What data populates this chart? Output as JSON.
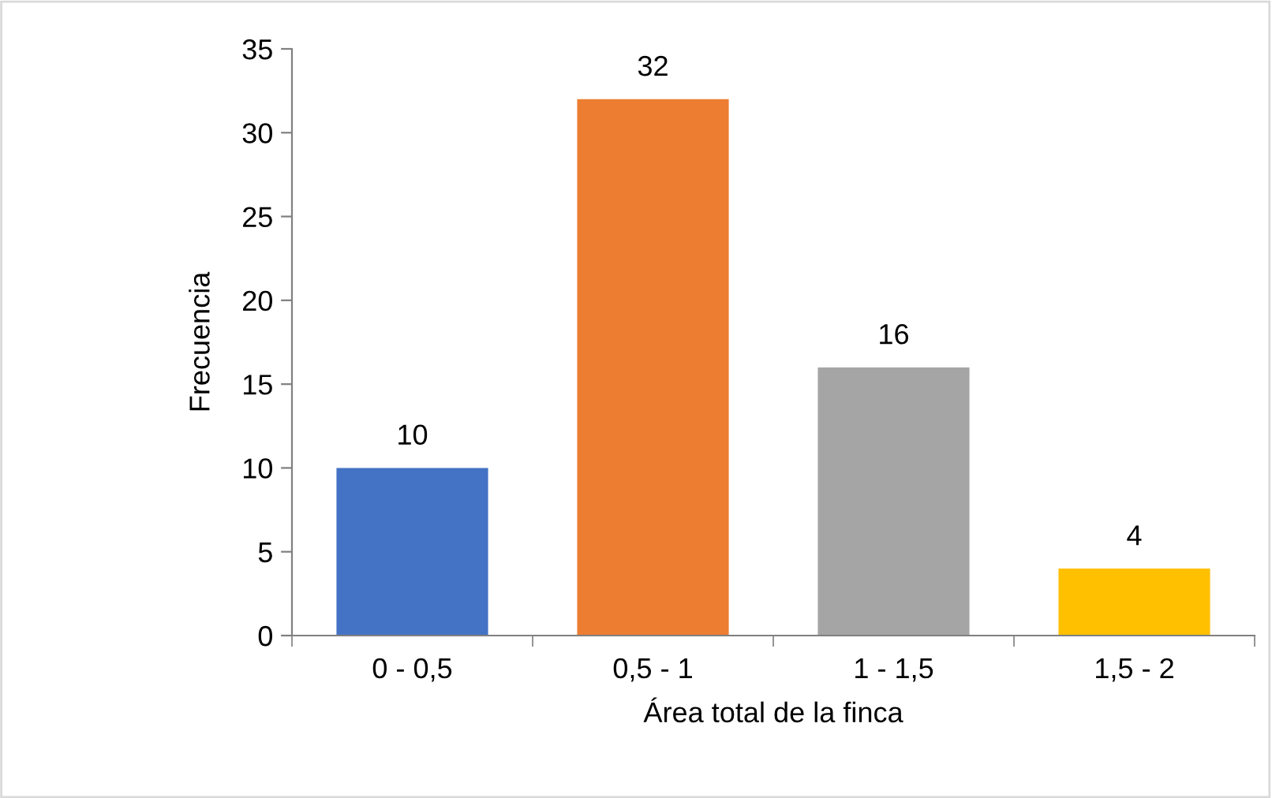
{
  "chart_data": {
    "type": "bar",
    "xlabel": "Área total de la finca",
    "ylabel": "Frecuencia",
    "categories": [
      "0 - 0,5",
      "0,5 - 1",
      "1 - 1,5",
      "1,5 - 2"
    ],
    "values": [
      10,
      32,
      16,
      4
    ],
    "colors": [
      "#4472c4",
      "#ed7d31",
      "#a5a5a5",
      "#ffc000"
    ],
    "ylim": [
      0,
      35
    ],
    "yticks": [
      0,
      5,
      10,
      15,
      20,
      25,
      30,
      35
    ],
    "data_labels": true,
    "grid": false,
    "legend": false
  }
}
